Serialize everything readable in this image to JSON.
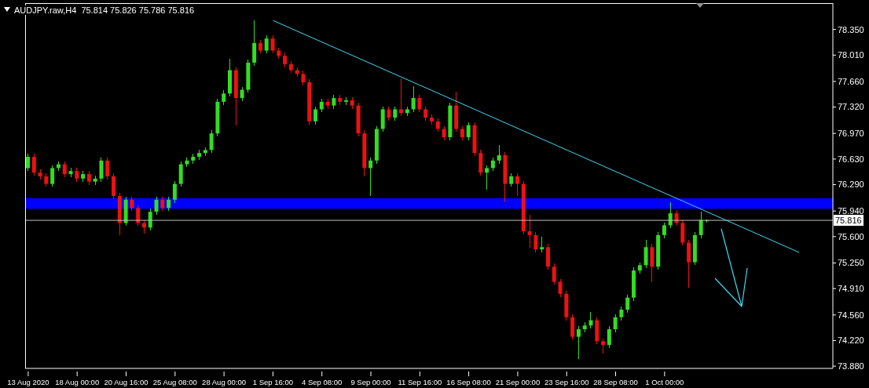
{
  "chart_data": {
    "type": "candlestick",
    "title": "AUDJPY.raw,H4  75.814 75.826 75.786 75.816",
    "categories": [
      "13 Aug 2020",
      null,
      null,
      null,
      null,
      null,
      null,
      null,
      "18 Aug 00:00",
      null,
      null,
      null,
      null,
      null,
      null,
      null,
      "20 Aug 16:00",
      null,
      null,
      null,
      null,
      null,
      null,
      null,
      "25 Aug 08:00",
      null,
      null,
      null,
      null,
      null,
      null,
      null,
      "28 Aug 00:00",
      null,
      null,
      null,
      null,
      null,
      null,
      null,
      "1 Sep 16:00",
      null,
      null,
      null,
      null,
      null,
      null,
      null,
      "4 Sep 08:00",
      null,
      null,
      null,
      null,
      null,
      null,
      null,
      "9 Sep 00:00",
      null,
      null,
      null,
      null,
      null,
      null,
      null,
      "11 Sep 16:00",
      null,
      null,
      null,
      null,
      null,
      null,
      null,
      "16 Sep 08:00",
      null,
      null,
      null,
      null,
      null,
      null,
      null,
      "21 Sep 00:00",
      null,
      null,
      null,
      null,
      null,
      null,
      null,
      "23 Sep 16:00",
      null,
      null,
      null,
      null,
      null,
      null,
      null,
      "28 Sep 08:00",
      null,
      null,
      null,
      null,
      null,
      null,
      null,
      "1 Oct 00:00",
      null,
      null,
      null,
      null,
      null,
      null,
      null,
      null,
      null,
      null,
      null,
      null,
      null,
      null,
      null,
      null,
      null,
      null,
      null,
      null,
      null,
      null,
      null,
      null,
      null,
      null,
      null
    ],
    "ohlc": [
      [
        76.51,
        76.7,
        76.47,
        76.66
      ],
      [
        76.66,
        76.7,
        76.41,
        76.45
      ],
      [
        76.45,
        76.49,
        76.36,
        76.4
      ],
      [
        76.4,
        76.44,
        76.26,
        76.3
      ],
      [
        76.3,
        76.55,
        76.26,
        76.51
      ],
      [
        76.51,
        76.6,
        76.47,
        76.56
      ],
      [
        76.56,
        76.6,
        76.39,
        76.43
      ],
      [
        76.43,
        76.51,
        76.39,
        76.47
      ],
      [
        76.47,
        76.51,
        76.33,
        76.37
      ],
      [
        76.37,
        76.47,
        76.33,
        76.43
      ],
      [
        76.43,
        76.47,
        76.29,
        76.33
      ],
      [
        76.33,
        76.41,
        76.29,
        76.37
      ],
      [
        76.37,
        76.65,
        76.33,
        76.61
      ],
      [
        76.61,
        76.65,
        76.36,
        76.4
      ],
      [
        76.4,
        76.44,
        76.1,
        76.14
      ],
      [
        76.14,
        76.18,
        75.62,
        75.78
      ],
      [
        75.78,
        76.13,
        75.74,
        76.09
      ],
      [
        76.09,
        76.13,
        75.94,
        75.98
      ],
      [
        75.98,
        76.02,
        75.74,
        75.78
      ],
      [
        75.78,
        75.82,
        75.64,
        75.72
      ],
      [
        75.72,
        75.97,
        75.68,
        75.93
      ],
      [
        75.93,
        76.13,
        75.89,
        76.09
      ],
      [
        76.09,
        76.13,
        75.94,
        75.98
      ],
      [
        75.98,
        76.13,
        75.94,
        76.09
      ],
      [
        76.09,
        76.34,
        76.05,
        76.3
      ],
      [
        76.3,
        76.6,
        76.26,
        76.56
      ],
      [
        76.56,
        76.65,
        76.52,
        76.61
      ],
      [
        76.61,
        76.7,
        76.57,
        76.66
      ],
      [
        76.66,
        76.75,
        76.62,
        76.71
      ],
      [
        76.71,
        76.79,
        76.67,
        76.75
      ],
      [
        76.75,
        77.01,
        76.71,
        76.97
      ],
      [
        76.97,
        77.43,
        76.93,
        77.39
      ],
      [
        77.39,
        77.54,
        77.35,
        77.5
      ],
      [
        77.5,
        77.96,
        77.46,
        77.81
      ],
      [
        77.81,
        77.85,
        77.08,
        77.44
      ],
      [
        77.44,
        77.59,
        77.4,
        77.55
      ],
      [
        77.55,
        77.95,
        77.51,
        77.91
      ],
      [
        77.91,
        78.47,
        77.87,
        78.17
      ],
      [
        78.17,
        78.21,
        78.03,
        78.07
      ],
      [
        78.07,
        78.27,
        78.03,
        78.23
      ],
      [
        78.23,
        78.27,
        78.03,
        78.07
      ],
      [
        78.07,
        78.11,
        77.96,
        78.0
      ],
      [
        78.0,
        78.04,
        77.85,
        77.89
      ],
      [
        77.89,
        77.93,
        77.77,
        77.81
      ],
      [
        77.81,
        77.85,
        77.72,
        77.76
      ],
      [
        77.76,
        77.8,
        77.61,
        77.65
      ],
      [
        77.65,
        77.69,
        77.09,
        77.13
      ],
      [
        77.13,
        77.33,
        77.09,
        77.29
      ],
      [
        77.29,
        77.43,
        77.25,
        77.39
      ],
      [
        77.39,
        77.43,
        77.3,
        77.34
      ],
      [
        77.34,
        77.48,
        77.3,
        77.44
      ],
      [
        77.44,
        77.48,
        77.35,
        77.39
      ],
      [
        77.39,
        77.45,
        77.35,
        77.41
      ],
      [
        77.41,
        77.45,
        77.3,
        77.34
      ],
      [
        77.34,
        77.38,
        76.93,
        76.97
      ],
      [
        76.97,
        77.01,
        76.4,
        76.51
      ],
      [
        76.51,
        76.65,
        76.14,
        76.61
      ],
      [
        76.61,
        77.07,
        76.57,
        77.03
      ],
      [
        77.03,
        77.33,
        76.99,
        77.29
      ],
      [
        77.29,
        77.33,
        77.14,
        77.18
      ],
      [
        77.18,
        77.33,
        77.14,
        77.29
      ],
      [
        77.29,
        77.7,
        77.2,
        77.24
      ],
      [
        77.24,
        77.33,
        77.2,
        77.29
      ],
      [
        77.29,
        77.6,
        77.25,
        77.44
      ],
      [
        77.44,
        77.48,
        77.25,
        77.29
      ],
      [
        77.29,
        77.33,
        77.14,
        77.18
      ],
      [
        77.18,
        77.22,
        77.09,
        77.13
      ],
      [
        77.13,
        77.17,
        76.99,
        77.03
      ],
      [
        77.03,
        77.07,
        76.88,
        76.92
      ],
      [
        76.92,
        77.38,
        76.88,
        77.34
      ],
      [
        77.34,
        77.52,
        76.99,
        77.03
      ],
      [
        77.03,
        77.07,
        76.88,
        76.92
      ],
      [
        76.92,
        77.12,
        76.88,
        77.08
      ],
      [
        77.08,
        77.12,
        76.67,
        76.71
      ],
      [
        76.71,
        76.75,
        76.41,
        76.45
      ],
      [
        76.45,
        76.55,
        76.22,
        76.51
      ],
      [
        76.51,
        76.65,
        76.47,
        76.61
      ],
      [
        76.61,
        76.82,
        76.57,
        76.68
      ],
      [
        76.68,
        76.72,
        76.06,
        76.3
      ],
      [
        76.3,
        76.44,
        76.26,
        76.4
      ],
      [
        76.4,
        76.44,
        76.14,
        76.3
      ],
      [
        76.3,
        76.34,
        75.63,
        75.67
      ],
      [
        75.67,
        75.89,
        75.45,
        75.62
      ],
      [
        75.62,
        75.66,
        75.39,
        75.43
      ],
      [
        75.43,
        75.6,
        75.39,
        75.46
      ],
      [
        75.46,
        75.5,
        75.16,
        75.2
      ],
      [
        75.2,
        75.24,
        74.96,
        75.0
      ],
      [
        75.0,
        75.04,
        74.8,
        74.84
      ],
      [
        74.84,
        74.88,
        74.49,
        74.53
      ],
      [
        74.53,
        74.57,
        74.23,
        74.27
      ],
      [
        74.27,
        74.41,
        73.98,
        74.37
      ],
      [
        74.37,
        74.46,
        74.33,
        74.42
      ],
      [
        74.42,
        74.6,
        74.38,
        74.49
      ],
      [
        74.49,
        74.53,
        74.17,
        74.21
      ],
      [
        74.21,
        74.25,
        74.05,
        74.16
      ],
      [
        74.16,
        74.41,
        74.12,
        74.37
      ],
      [
        74.37,
        74.57,
        74.33,
        74.53
      ],
      [
        74.53,
        74.67,
        74.49,
        74.63
      ],
      [
        74.63,
        74.83,
        74.59,
        74.79
      ],
      [
        74.79,
        75.19,
        74.75,
        75.15
      ],
      [
        75.15,
        75.26,
        75.11,
        75.22
      ],
      [
        75.22,
        75.56,
        75.18,
        75.46
      ],
      [
        75.46,
        75.5,
        75.0,
        75.2
      ],
      [
        75.2,
        75.66,
        75.16,
        75.62
      ],
      [
        75.62,
        75.79,
        75.58,
        75.75
      ],
      [
        75.75,
        76.06,
        75.71,
        75.91
      ],
      [
        75.91,
        75.95,
        75.74,
        75.78
      ],
      [
        75.78,
        75.82,
        75.48,
        75.52
      ],
      [
        75.52,
        75.56,
        74.92,
        75.26
      ],
      [
        75.26,
        75.66,
        75.22,
        75.62
      ],
      [
        75.62,
        75.93,
        75.58,
        75.82
      ],
      [
        75.814,
        75.826,
        75.786,
        75.816
      ],
      null,
      null,
      null,
      null,
      null,
      null,
      null,
      null,
      null,
      null,
      null,
      null,
      null,
      null,
      null,
      null,
      null,
      null,
      null,
      null
    ],
    "colors": [
      "#33dd22",
      "#ee1111",
      "#ee1111",
      "#ee1111",
      "#33dd22",
      "#33dd22",
      "#ee1111",
      "#33dd22",
      "#ee1111",
      "#33dd22",
      "#ee1111",
      "#33dd22",
      "#33dd22",
      "#ee1111",
      "#ee1111",
      "#ee1111",
      "#33dd22",
      "#ee1111",
      "#ee1111",
      "#ee1111",
      "#33dd22",
      "#33dd22",
      "#ee1111",
      "#33dd22",
      "#33dd22",
      "#33dd22",
      "#33dd22",
      "#33dd22",
      "#33dd22",
      "#33dd22",
      "#33dd22",
      "#33dd22",
      "#33dd22",
      "#33dd22",
      "#ee1111",
      "#33dd22",
      "#33dd22",
      "#33dd22",
      "#ee1111",
      "#33dd22",
      "#ee1111",
      "#ee1111",
      "#ee1111",
      "#ee1111",
      "#ee1111",
      "#ee1111",
      "#ee1111",
      "#33dd22",
      "#33dd22",
      "#ee1111",
      "#33dd22",
      "#ee1111",
      "#33dd22",
      "#ee1111",
      "#ee1111",
      "#ee1111",
      "#33dd22",
      "#33dd22",
      "#33dd22",
      "#ee1111",
      "#33dd22",
      "#ee1111",
      "#33dd22",
      "#33dd22",
      "#ee1111",
      "#ee1111",
      "#ee1111",
      "#ee1111",
      "#ee1111",
      "#33dd22",
      "#ee1111",
      "#ee1111",
      "#33dd22",
      "#ee1111",
      "#ee1111",
      "#33dd22",
      "#33dd22",
      "#33dd22",
      "#ee1111",
      "#33dd22",
      "#ee1111",
      "#ee1111",
      "#ee1111",
      "#ee1111",
      "#33dd22",
      "#ee1111",
      "#ee1111",
      "#ee1111",
      "#ee1111",
      "#ee1111",
      "#33dd22",
      "#33dd22",
      "#33dd22",
      "#ee1111",
      "#ee1111",
      "#33dd22",
      "#33dd22",
      "#33dd22",
      "#33dd22",
      "#33dd22",
      "#33dd22",
      "#33dd22",
      "#ee1111",
      "#33dd22",
      "#33dd22",
      "#33dd22",
      "#ee1111",
      "#ee1111",
      "#ee1111",
      "#33dd22",
      "#33dd22",
      "#33dd22",
      null,
      null,
      null,
      null,
      null,
      null,
      null,
      null,
      null,
      null,
      null,
      null,
      null,
      null,
      null,
      null,
      null,
      null,
      null,
      null
    ],
    "series": [
      {
        "type": "line",
        "color": "#40d8f0",
        "values": [
          null,
          null,
          null,
          null,
          null,
          null,
          null,
          null,
          null,
          null,
          null,
          null,
          null,
          null,
          null,
          null,
          null,
          null,
          null,
          null,
          null,
          null,
          null,
          null,
          null,
          null,
          null,
          null,
          null,
          null,
          null,
          null,
          null,
          null,
          null,
          null,
          null,
          null,
          null,
          null,
          78.47,
          null,
          null,
          null,
          null,
          null,
          null,
          null,
          null,
          null,
          null,
          null,
          null,
          null,
          null,
          null,
          null,
          null,
          null,
          null,
          null,
          null,
          null,
          null,
          null,
          null,
          null,
          null,
          null,
          null,
          null,
          null,
          null,
          null,
          null,
          null,
          null,
          null,
          null,
          null,
          null,
          null,
          null,
          null,
          null,
          null,
          null,
          null,
          null,
          null,
          null,
          null,
          null,
          null,
          null,
          null,
          null,
          null,
          null,
          null,
          null,
          null,
          null,
          null,
          null,
          null,
          null,
          null,
          null,
          null,
          null,
          null,
          null,
          null,
          null,
          null,
          null,
          null,
          null,
          null,
          null,
          null,
          null,
          null,
          null,
          null,
          75.39,
          null,
          null,
          null,
          null,
          null
        ]
      }
    ],
    "ylim": [
      73.85,
      78.7
    ],
    "yticks": [
      {
        "value": 73.88,
        "label": "73.880"
      },
      {
        "value": 74.22,
        "label": "74.220"
      },
      {
        "value": 74.56,
        "label": "74.560"
      },
      {
        "value": 74.91,
        "label": "74.910"
      },
      {
        "value": 75.25,
        "label": "75.250"
      },
      {
        "value": 75.6,
        "label": "75.600"
      },
      {
        "value": 75.94,
        "label": "75.940"
      },
      {
        "value": 76.29,
        "label": "76.290"
      },
      {
        "value": 76.63,
        "label": "76.630"
      },
      {
        "value": 76.97,
        "label": "76.970"
      },
      {
        "value": 77.32,
        "label": "77.320"
      },
      {
        "value": 77.66,
        "label": "77.660"
      },
      {
        "value": 78.01,
        "label": "78.010"
      },
      {
        "value": 78.35,
        "label": "78.350"
      }
    ],
    "ref_lines": [
      {
        "axis": "y",
        "value": 75.816,
        "label": "75.816",
        "color": "#c0c0c0"
      }
    ],
    "bands": [
      {
        "axis": "y",
        "from": 75.97,
        "to": 76.11,
        "color": "#0000ff"
      }
    ]
  }
}
